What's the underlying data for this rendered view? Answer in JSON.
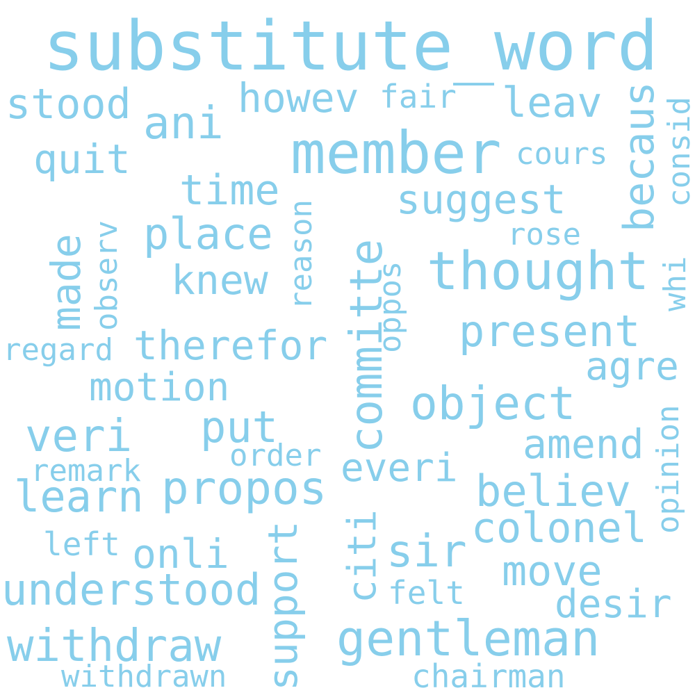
{
  "color": "#87ceeb",
  "words": [
    "substitute_word",
    "member",
    "thought",
    "committe",
    "gentleman",
    "object",
    "present",
    "propos",
    "time",
    "place",
    "suggest",
    "therefor",
    "motion",
    "ani",
    "stood",
    "howev",
    "leav",
    "quit",
    "fair",
    "cours",
    "becaus",
    "consid",
    "made",
    "observ",
    "reason",
    "knew",
    "rose",
    "oppos",
    "whi",
    "regard",
    "agre",
    "opinion",
    "veri",
    "put",
    "amend",
    "remark",
    "order",
    "everi",
    "learn",
    "believ",
    "colonel",
    "support",
    "citi",
    "sir",
    "left",
    "onli",
    "move",
    "understood",
    "felt",
    "desir",
    "withdraw",
    "withdrawn",
    "chairman"
  ]
}
